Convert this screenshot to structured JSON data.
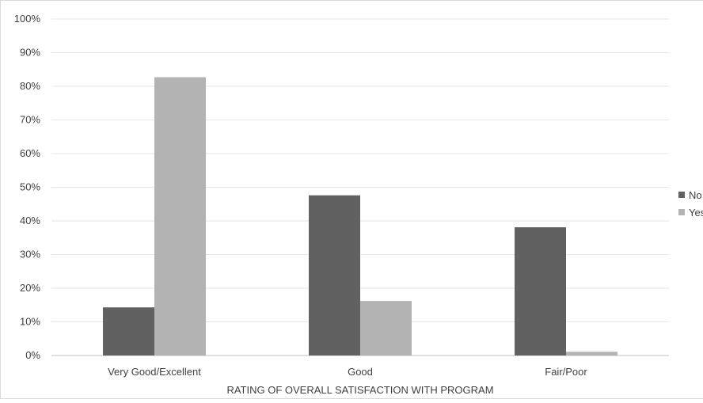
{
  "chart_data": {
    "type": "bar",
    "categories": [
      "Very Good/Excellent",
      "Good",
      "Fair/Poor"
    ],
    "series": [
      {
        "name": "No",
        "values": [
          14.3,
          47.6,
          38.1
        ],
        "color": "#616161"
      },
      {
        "name": "Yes",
        "values": [
          82.7,
          16.2,
          1.1
        ],
        "color": "#b3b3b3"
      }
    ],
    "xlabel": "RATING OF OVERALL SATISFACTION WITH PROGRAM",
    "ylabel": "",
    "ylim": [
      0,
      100
    ],
    "yticks": [
      "0%",
      "10%",
      "20%",
      "30%",
      "40%",
      "50%",
      "60%",
      "70%",
      "80%",
      "90%",
      "100%"
    ],
    "grid": true,
    "legend_position": "right"
  }
}
